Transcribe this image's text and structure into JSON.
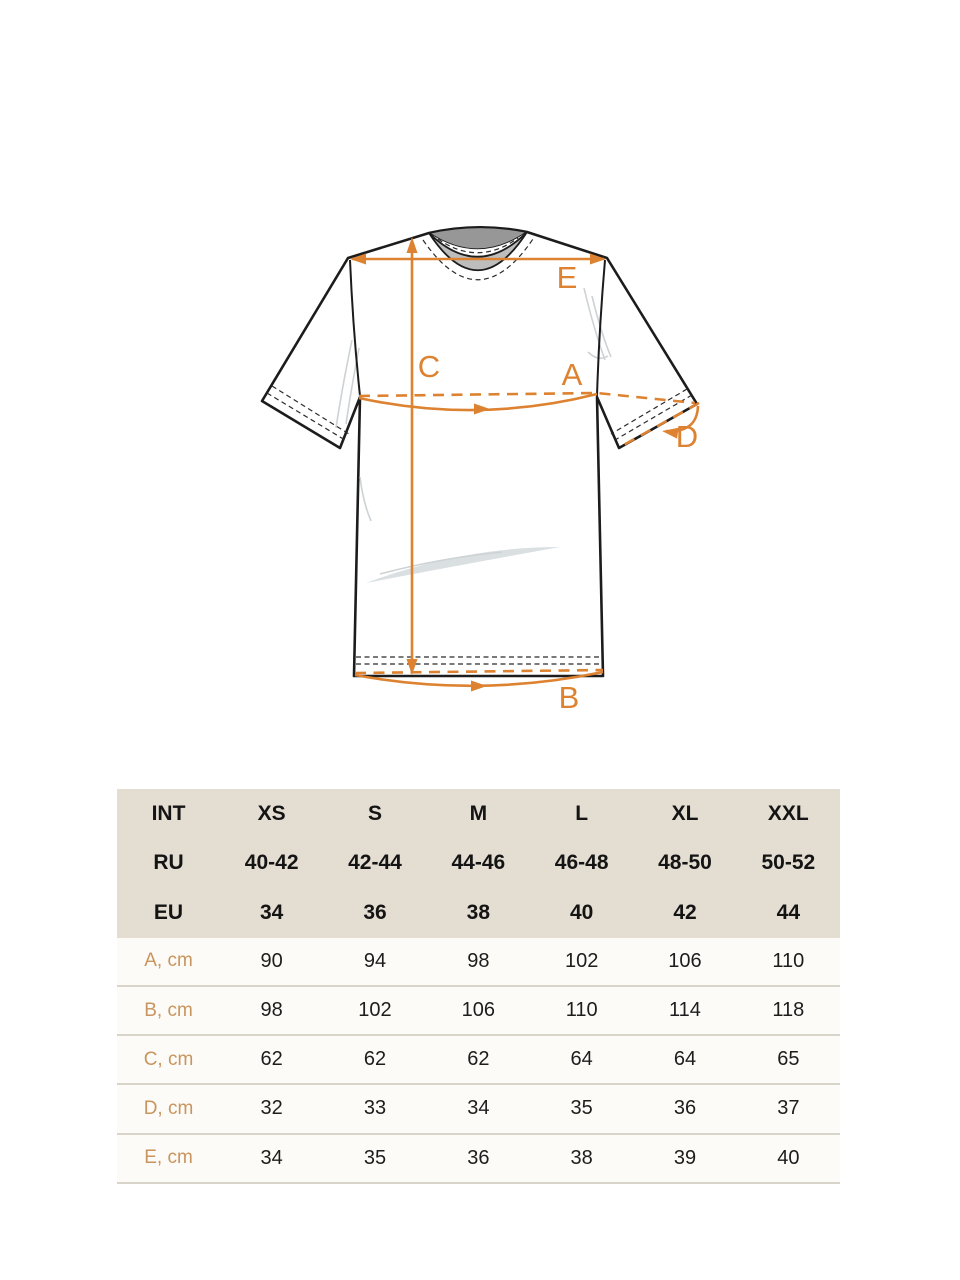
{
  "colors": {
    "accent": "#dd8230",
    "measure_label": "#c9955e",
    "header_bg": "#e4ddd2",
    "row_bg": "#fcfbf7",
    "divider": "#d9d4c9"
  },
  "diagram": {
    "labels": {
      "A": "A",
      "B": "B",
      "C": "C",
      "D": "D",
      "E": "E"
    }
  },
  "size_table": {
    "header_rows": [
      {
        "label": "INT",
        "values": [
          "XS",
          "S",
          "M",
          "L",
          "XL",
          "XXL"
        ]
      },
      {
        "label": "RU",
        "values": [
          "40-42",
          "42-44",
          "44-46",
          "46-48",
          "48-50",
          "50-52"
        ]
      },
      {
        "label": "EU",
        "values": [
          "34",
          "36",
          "38",
          "40",
          "42",
          "44"
        ]
      }
    ],
    "measure_rows": [
      {
        "label": "A, cm",
        "values": [
          "90",
          "94",
          "98",
          "102",
          "106",
          "110"
        ]
      },
      {
        "label": "B, cm",
        "values": [
          "98",
          "102",
          "106",
          "110",
          "114",
          "118"
        ]
      },
      {
        "label": "C, cm",
        "values": [
          "62",
          "62",
          "62",
          "64",
          "64",
          "65"
        ]
      },
      {
        "label": "D, cm",
        "values": [
          "32",
          "33",
          "34",
          "35",
          "36",
          "37"
        ]
      },
      {
        "label": "E, cm",
        "values": [
          "34",
          "35",
          "36",
          "38",
          "39",
          "40"
        ]
      }
    ]
  }
}
